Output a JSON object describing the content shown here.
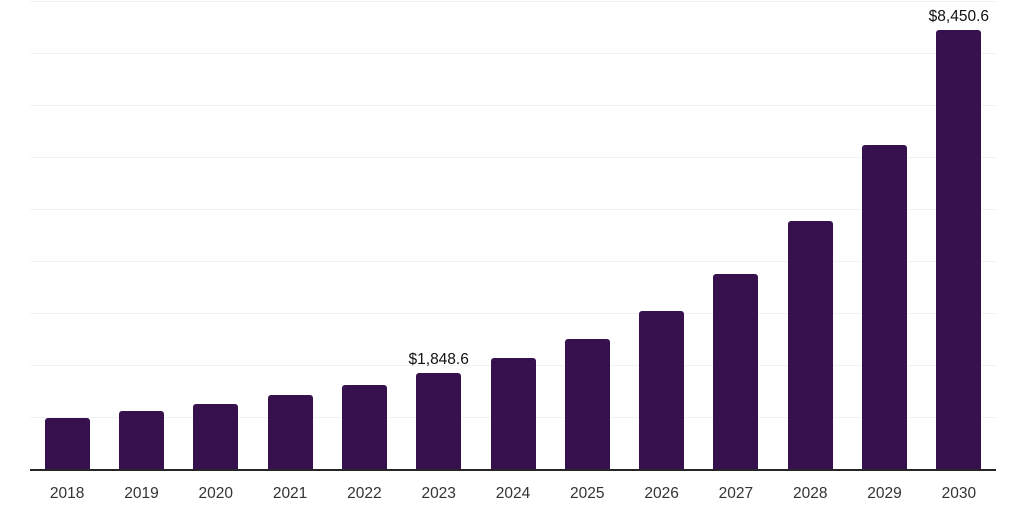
{
  "chart_data": {
    "type": "bar",
    "title": "",
    "xlabel": "",
    "ylabel": "",
    "categories": [
      "2018",
      "2019",
      "2020",
      "2021",
      "2022",
      "2023",
      "2024",
      "2025",
      "2026",
      "2027",
      "2028",
      "2029",
      "2030"
    ],
    "values": [
      990,
      1115,
      1255,
      1430,
      1620,
      1848.6,
      2135,
      2505,
      3040,
      3765,
      4765,
      6230,
      8450.6
    ],
    "value_labels": {
      "2023": "$1,848.6",
      "2030": "$8,450.6"
    },
    "ylim": [
      0,
      9000
    ],
    "grid_interval": 1000,
    "grid": true,
    "legend": false,
    "colors": {
      "bar": "#36114d",
      "axis_line": "#262626",
      "gridline": "#f2f2f2",
      "tick_label": "#333333",
      "value_label": "#111111",
      "background": "#ffffff"
    }
  }
}
